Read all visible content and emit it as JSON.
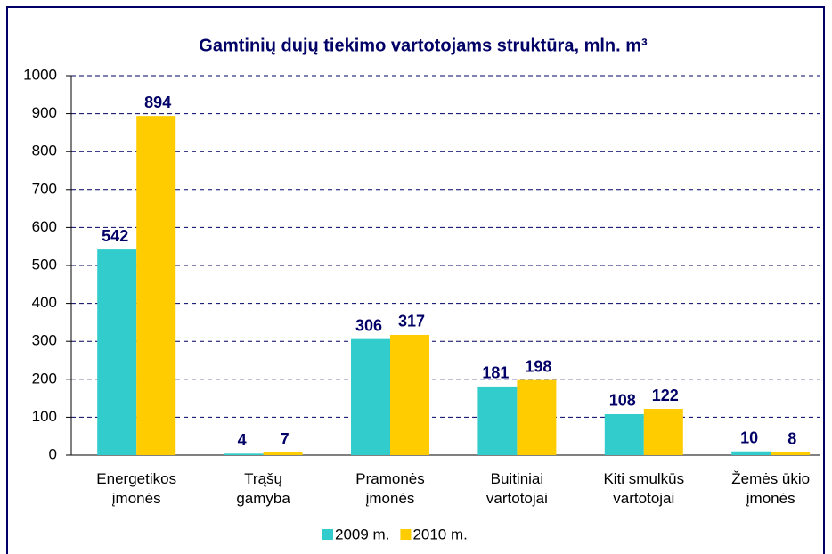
{
  "chart_data": {
    "type": "bar",
    "title": "Gamtinių dujų  tiekimo vartotojams struktūra, mln. m³",
    "categories": [
      [
        "Energetikos",
        "įmonės"
      ],
      [
        "Trąšų",
        "gamyba"
      ],
      [
        "Pramonės",
        "įmonės"
      ],
      [
        "Buitiniai",
        "vartotojai"
      ],
      [
        "Kiti smulkūs",
        "vartotojai"
      ],
      [
        "Žemės ūkio",
        "įmonės"
      ]
    ],
    "series": [
      {
        "name": "2009 m.",
        "color": "#33cccc",
        "values": [
          542,
          4,
          306,
          181,
          108,
          10
        ]
      },
      {
        "name": "2010 m.",
        "color": "#ffcc00",
        "values": [
          894,
          7,
          317,
          198,
          122,
          8
        ]
      }
    ],
    "ylim": [
      0,
      1000
    ],
    "yticks": [
      0,
      100,
      200,
      300,
      400,
      500,
      600,
      700,
      800,
      900,
      1000
    ],
    "grid": true,
    "legend": "bottom"
  }
}
